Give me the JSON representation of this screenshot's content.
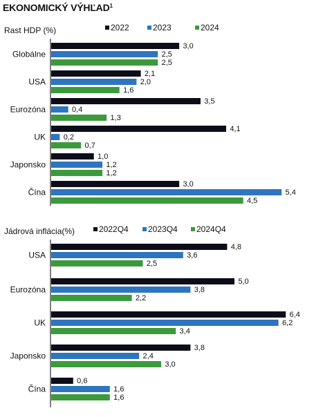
{
  "page": {
    "title": "EKONOMICKÝ VÝHĽAD",
    "title_footnote": "1"
  },
  "colors": {
    "black": "#0d0d1a",
    "blue": "#2e75c0",
    "green": "#3c9a3c",
    "axis": "#000000"
  },
  "chart_data": [
    {
      "type": "bar",
      "orientation": "horizontal",
      "title": "Rast HDP (%)",
      "categories": [
        "Globálne",
        "USA",
        "Eurozóna",
        "UK",
        "Japonsko",
        "Čína"
      ],
      "series": [
        {
          "name": "2022",
          "values": [
            3.0,
            2.1,
            3.5,
            4.1,
            1.0,
            3.0
          ],
          "labels": [
            "3,0",
            "2,1",
            "3,5",
            "4,1",
            "1,0",
            "3,0"
          ],
          "color": "#0d0d1a"
        },
        {
          "name": "2023",
          "values": [
            2.5,
            2.0,
            0.4,
            0.2,
            1.2,
            5.4
          ],
          "labels": [
            "2,5",
            "2,0",
            "0,4",
            "0,2",
            "1,2",
            "5,4"
          ],
          "color": "#2e75c0"
        },
        {
          "name": "2024",
          "values": [
            2.5,
            1.6,
            1.3,
            0.7,
            1.2,
            4.5
          ],
          "labels": [
            "2,5",
            "1,6",
            "1,3",
            "0,7",
            "1,2",
            "4,5"
          ],
          "color": "#3c9a3c"
        }
      ],
      "xlim": [
        0,
        5.4
      ],
      "legend": "top",
      "grid": false
    },
    {
      "type": "bar",
      "orientation": "horizontal",
      "title": "Jádrová inflácia(%)",
      "categories": [
        "USA",
        "Eurozóna",
        "UK",
        "Japonsko",
        "Čína"
      ],
      "series": [
        {
          "name": "2022Q4",
          "values": [
            4.8,
            5.0,
            6.4,
            3.8,
            0.6
          ],
          "labels": [
            "4,8",
            "5,0",
            "6,4",
            "3,8",
            "0,6"
          ],
          "color": "#0d0d1a"
        },
        {
          "name": "2023Q4",
          "values": [
            3.6,
            3.8,
            6.2,
            2.4,
            1.6
          ],
          "labels": [
            "3,6",
            "3,8",
            "6,2",
            "2,4",
            "1,6"
          ],
          "color": "#2e75c0"
        },
        {
          "name": "2024Q4",
          "values": [
            2.5,
            2.2,
            3.4,
            3.0,
            1.6
          ],
          "labels": [
            "2,5",
            "2,2",
            "3,4",
            "3,0",
            "1,6"
          ],
          "color": "#3c9a3c"
        }
      ],
      "xlim": [
        0,
        6.4
      ],
      "legend": "top",
      "grid": false
    }
  ]
}
